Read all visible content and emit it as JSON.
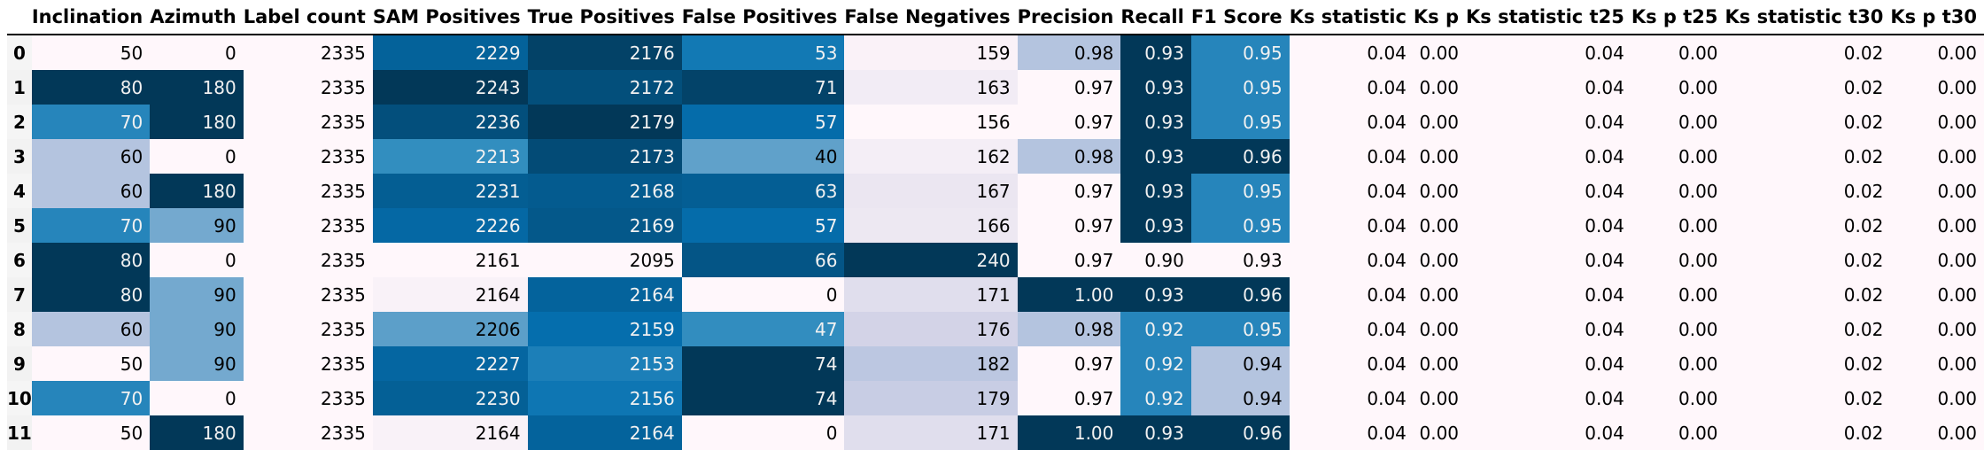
{
  "table": {
    "columns": [
      {
        "key": "inc",
        "label": "Inclination",
        "heat": true
      },
      {
        "key": "az",
        "label": "Azimuth",
        "heat": true
      },
      {
        "key": "lc",
        "label": "Label count",
        "heat": true
      },
      {
        "key": "sam",
        "label": "SAM Positives",
        "heat": true
      },
      {
        "key": "tp",
        "label": "True Positives",
        "heat": true
      },
      {
        "key": "fp",
        "label": "False Positives",
        "heat": true
      },
      {
        "key": "fn",
        "label": "False Negatives",
        "heat": true
      },
      {
        "key": "prec",
        "label": "Precision",
        "heat": true
      },
      {
        "key": "rec",
        "label": "Recall",
        "heat": true
      },
      {
        "key": "f1",
        "label": "F1 Score",
        "heat": true
      },
      {
        "key": "ks",
        "label": "Ks statistic",
        "heat": true
      },
      {
        "key": "ksp",
        "label": "Ks p",
        "heat": true
      },
      {
        "key": "ks25",
        "label": "Ks statistic t25",
        "heat": true
      },
      {
        "key": "ksp25",
        "label": "Ks p t25",
        "heat": true
      },
      {
        "key": "ks30",
        "label": "Ks statistic t30",
        "heat": true
      },
      {
        "key": "ksp30",
        "label": "Ks p t30",
        "heat": true
      }
    ],
    "rows": [
      {
        "idx": "0",
        "cells": [
          "50",
          "0",
          "2335",
          "2229",
          "2176",
          "53",
          "159",
          "0.98",
          "0.93",
          "0.95",
          "0.04",
          "0.00",
          "0.04",
          "0.00",
          "0.02",
          "0.00"
        ]
      },
      {
        "idx": "1",
        "cells": [
          "80",
          "180",
          "2335",
          "2243",
          "2172",
          "71",
          "163",
          "0.97",
          "0.93",
          "0.95",
          "0.04",
          "0.00",
          "0.04",
          "0.00",
          "0.02",
          "0.00"
        ]
      },
      {
        "idx": "2",
        "cells": [
          "70",
          "180",
          "2335",
          "2236",
          "2179",
          "57",
          "156",
          "0.97",
          "0.93",
          "0.95",
          "0.04",
          "0.00",
          "0.04",
          "0.00",
          "0.02",
          "0.00"
        ]
      },
      {
        "idx": "3",
        "cells": [
          "60",
          "0",
          "2335",
          "2213",
          "2173",
          "40",
          "162",
          "0.98",
          "0.93",
          "0.96",
          "0.04",
          "0.00",
          "0.04",
          "0.00",
          "0.02",
          "0.00"
        ]
      },
      {
        "idx": "4",
        "cells": [
          "60",
          "180",
          "2335",
          "2231",
          "2168",
          "63",
          "167",
          "0.97",
          "0.93",
          "0.95",
          "0.04",
          "0.00",
          "0.04",
          "0.00",
          "0.02",
          "0.00"
        ]
      },
      {
        "idx": "5",
        "cells": [
          "70",
          "90",
          "2335",
          "2226",
          "2169",
          "57",
          "166",
          "0.97",
          "0.93",
          "0.95",
          "0.04",
          "0.00",
          "0.04",
          "0.00",
          "0.02",
          "0.00"
        ]
      },
      {
        "idx": "6",
        "cells": [
          "80",
          "0",
          "2335",
          "2161",
          "2095",
          "66",
          "240",
          "0.97",
          "0.90",
          "0.93",
          "0.04",
          "0.00",
          "0.04",
          "0.00",
          "0.02",
          "0.00"
        ]
      },
      {
        "idx": "7",
        "cells": [
          "80",
          "90",
          "2335",
          "2164",
          "2164",
          "0",
          "171",
          "1.00",
          "0.93",
          "0.96",
          "0.04",
          "0.00",
          "0.04",
          "0.00",
          "0.02",
          "0.00"
        ]
      },
      {
        "idx": "8",
        "cells": [
          "60",
          "90",
          "2335",
          "2206",
          "2159",
          "47",
          "176",
          "0.98",
          "0.92",
          "0.95",
          "0.04",
          "0.00",
          "0.04",
          "0.00",
          "0.02",
          "0.00"
        ]
      },
      {
        "idx": "9",
        "cells": [
          "50",
          "90",
          "2335",
          "2227",
          "2153",
          "74",
          "182",
          "0.97",
          "0.92",
          "0.94",
          "0.04",
          "0.00",
          "0.04",
          "0.00",
          "0.02",
          "0.00"
        ]
      },
      {
        "idx": "10",
        "cells": [
          "70",
          "0",
          "2335",
          "2230",
          "2156",
          "74",
          "179",
          "0.97",
          "0.92",
          "0.94",
          "0.04",
          "0.00",
          "0.04",
          "0.00",
          "0.02",
          "0.00"
        ]
      },
      {
        "idx": "11",
        "cells": [
          "50",
          "180",
          "2335",
          "2164",
          "2164",
          "0",
          "171",
          "1.00",
          "0.93",
          "0.96",
          "0.04",
          "0.00",
          "0.04",
          "0.00",
          "0.02",
          "0.00"
        ]
      }
    ]
  },
  "colormap": {
    "low": "#fff7fb",
    "mid": "#74a9cf",
    "high": "#023858"
  }
}
